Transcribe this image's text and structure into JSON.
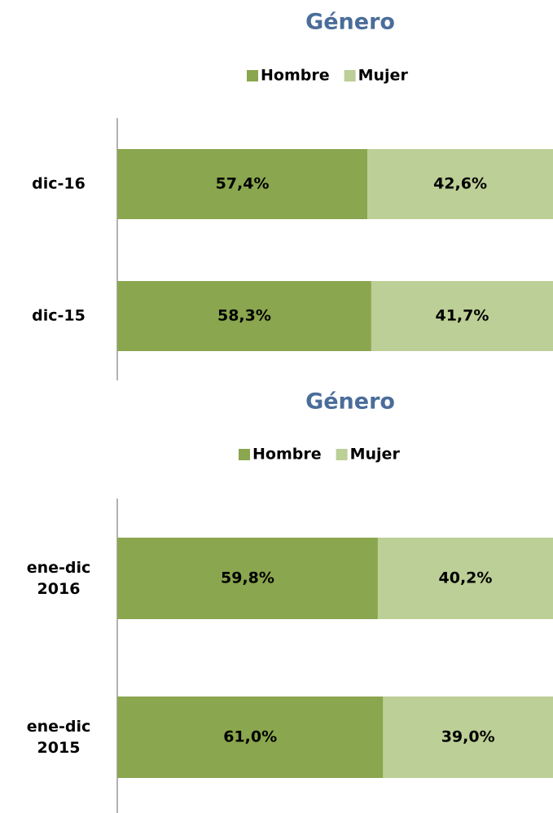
{
  "chart_data": [
    {
      "type": "stacked-bar-horizontal",
      "title": "Género",
      "categories": [
        "dic-16",
        "dic-15"
      ],
      "xlim": [
        0,
        100
      ],
      "series": [
        {
          "name": "Hombre",
          "color": "#8aa64e",
          "values": [
            57.4,
            58.3
          ],
          "value_labels": [
            "57,4%",
            "58,3%"
          ]
        },
        {
          "name": "Mujer",
          "color": "#bccf96",
          "values": [
            42.6,
            41.7
          ],
          "value_labels": [
            "42,6%",
            "41,7%"
          ]
        }
      ]
    },
    {
      "type": "stacked-bar-horizontal",
      "title": "Género",
      "categories": [
        "ene-dic 2016",
        "ene-dic 2015"
      ],
      "xlim": [
        0,
        100
      ],
      "series": [
        {
          "name": "Hombre",
          "color": "#8aa64e",
          "values": [
            59.8,
            61.0
          ],
          "value_labels": [
            "59,8%",
            "61,0%"
          ]
        },
        {
          "name": "Mujer",
          "color": "#bccf96",
          "values": [
            40.2,
            39.0
          ],
          "value_labels": [
            "40,2%",
            "39,0%"
          ]
        }
      ]
    }
  ]
}
